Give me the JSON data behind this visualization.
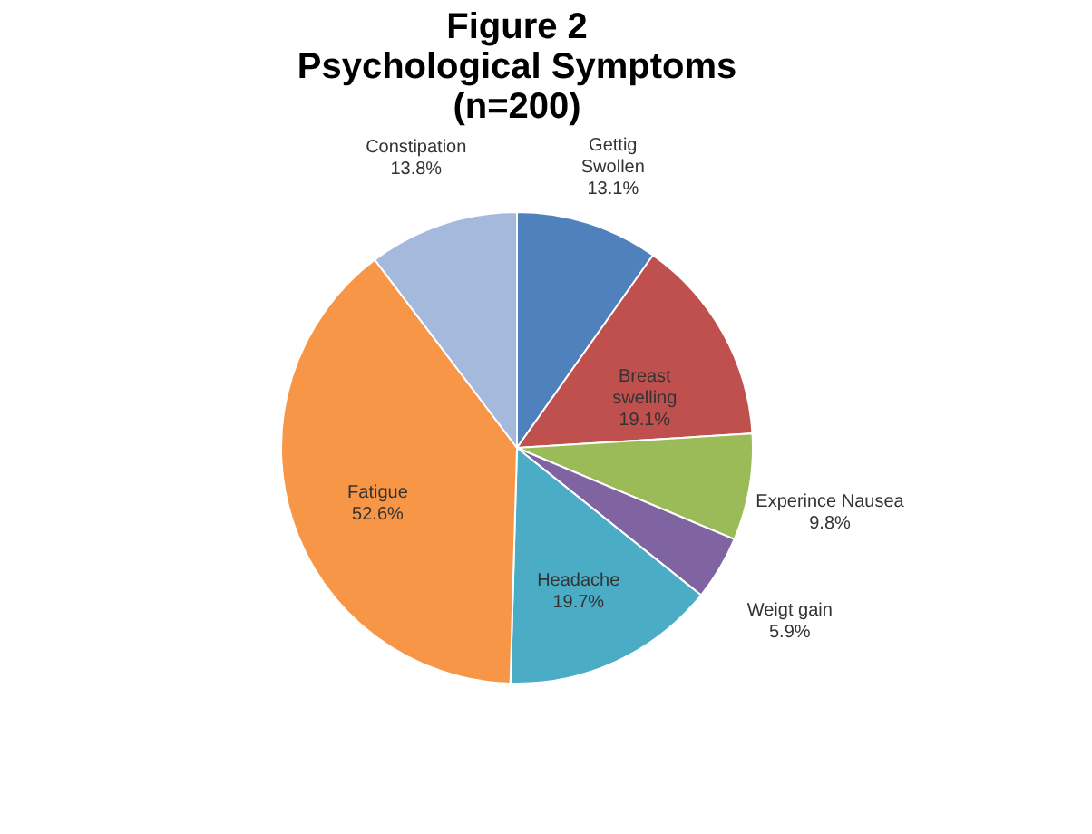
{
  "chart_data": {
    "type": "pie",
    "title": "Figure 2\nPsychological Symptoms\n(n=200)",
    "categories": [
      "Gettig\nSwollen",
      "Breast\nswelling",
      "Experince Nausea",
      "Weigt gain",
      "Headache",
      "Fatigue",
      "Constipation"
    ],
    "values": [
      13.1,
      19.1,
      9.8,
      5.9,
      19.7,
      52.6,
      13.8
    ],
    "value_labels": [
      "13.1%",
      "19.1%",
      "9.8%",
      "5.9%",
      "19.7%",
      "52.6%",
      "13.8%"
    ],
    "colors": [
      "#4f81bd",
      "#c0504d",
      "#9bbb59",
      "#8064a2",
      "#4bacc6",
      "#f79646",
      "#a5b9dd"
    ],
    "legend": false
  }
}
